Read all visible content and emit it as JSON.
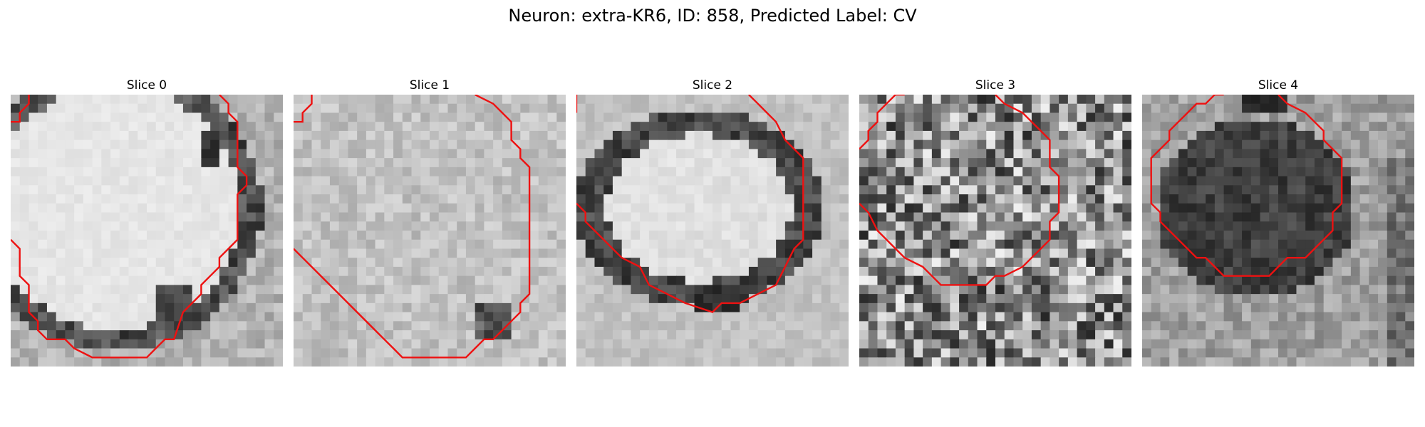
{
  "figure": {
    "title": "Neuron: extra-KR6, ID: 858, Predicted Label: CV"
  },
  "panels": [
    {
      "title": "Slice 0",
      "texture": "bright-ring-cell"
    },
    {
      "title": "Slice 1",
      "texture": "faint-light"
    },
    {
      "title": "Slice 2",
      "texture": "bright-oval-dark-rim"
    },
    {
      "title": "Slice 3",
      "texture": "noisy-mid"
    },
    {
      "title": "Slice 4",
      "texture": "dark-blob"
    }
  ],
  "colors": {
    "contour": "#ee1111",
    "background": "#ffffff"
  }
}
